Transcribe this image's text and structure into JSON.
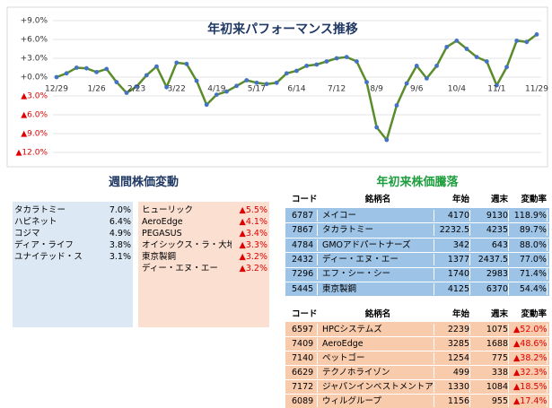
{
  "chart_data": {
    "type": "line",
    "title": "年初来パフォーマンス推移",
    "categories": [
      "12/29",
      null,
      null,
      null,
      "1/26",
      null,
      null,
      null,
      "2/23",
      null,
      null,
      null,
      "3/22",
      null,
      null,
      null,
      "4/19",
      null,
      null,
      null,
      "5/17",
      null,
      null,
      null,
      "6/14",
      null,
      null,
      null,
      "7/12",
      null,
      null,
      null,
      "8/9",
      null,
      null,
      null,
      "9/6",
      null,
      null,
      null,
      "10/4",
      null,
      null,
      null,
      "11/1",
      null,
      null,
      null,
      "11/29"
    ],
    "series": [
      {
        "color": "#5b8c2a",
        "marker_color": "#4472c4",
        "values": [
          0.0,
          0.6,
          1.5,
          1.4,
          0.8,
          1.3,
          -0.8,
          -2.5,
          -1.5,
          0.3,
          1.7,
          -1.6,
          2.3,
          2.1,
          -0.6,
          -4.4,
          -2.8,
          -2.3,
          -1.4,
          -0.5,
          -0.9,
          -1.1,
          -0.9,
          0.6,
          1.0,
          1.8,
          2.0,
          2.5,
          3.0,
          3.2,
          2.5,
          -0.8,
          -8.0,
          -10.0,
          -4.5,
          -1.0,
          1.8,
          -0.2,
          1.8,
          4.8,
          5.8,
          4.5,
          3.2,
          2.5,
          -1.3,
          1.6,
          5.8,
          5.6,
          6.8
        ]
      }
    ],
    "ylim": [
      -12,
      9
    ],
    "yticks": [
      {
        "value": 9,
        "label": "+9.0%"
      },
      {
        "value": 6,
        "label": "+6.0%"
      },
      {
        "value": 3,
        "label": "+3.0%"
      },
      {
        "value": 0,
        "label": "+0.0%"
      },
      {
        "value": -3,
        "label": "▲3.0%"
      },
      {
        "value": -6,
        "label": "▲6.0%"
      },
      {
        "value": -9,
        "label": "▲9.0%"
      },
      {
        "value": -12,
        "label": "▲12.0%"
      }
    ],
    "negative_tick_color": "#e00000",
    "grid": true
  },
  "weekly": {
    "title": "週間株価変動",
    "gainers": [
      [
        "タカラトミー",
        "7.0%"
      ],
      [
        "ハピネット",
        "6.4%"
      ],
      [
        "コジマ",
        "4.9%"
      ],
      [
        "ディア・ライフ",
        "3.8%"
      ],
      [
        "ユナイテッド・スーパー",
        "3.1%"
      ]
    ],
    "losers": [
      [
        "ヒューリック",
        "▲5.5%"
      ],
      [
        "AeroEdge",
        "▲4.1%"
      ],
      [
        "PEGASUS",
        "▲3.4%"
      ],
      [
        "オイシックス・ラ・大地",
        "▲3.3%"
      ],
      [
        "東京製鋼",
        "▲3.2%"
      ],
      [
        "ディー・エヌ・エー",
        "▲3.2%"
      ]
    ]
  },
  "ytd": {
    "title": "年初来株価騰落",
    "header": [
      "コード",
      "銘柄名",
      "年始",
      "週末",
      "変動率"
    ],
    "top": [
      [
        "6787",
        "メイコー",
        "4170",
        "9130",
        "118.9%"
      ],
      [
        "7867",
        "タカラトミー",
        "2232.5",
        "4235",
        "89.7%"
      ],
      [
        "4784",
        "GMOアドパートナーズ",
        "342",
        "643",
        "88.0%"
      ],
      [
        "2432",
        "ディー・エヌ・エー",
        "1377",
        "2437.5",
        "77.0%"
      ],
      [
        "7296",
        "エフ・シー・シー",
        "1740",
        "2983",
        "71.4%"
      ],
      [
        "5445",
        "東京製鋼",
        "4125",
        "6370",
        "54.4%"
      ]
    ],
    "bottom": [
      [
        "6597",
        "HPCシステムズ",
        "2239",
        "1075",
        "▲52.0%"
      ],
      [
        "7409",
        "AeroEdge",
        "3285",
        "1688",
        "▲48.6%"
      ],
      [
        "7140",
        "ペットゴー",
        "1254",
        "775",
        "▲38.2%"
      ],
      [
        "6629",
        "テクノホライゾン",
        "499",
        "338",
        "▲32.3%"
      ],
      [
        "7172",
        "ジャパンインベストメントアドバイザー",
        "1330",
        "1084",
        "▲18.5%"
      ],
      [
        "6089",
        "ウィルグループ",
        "1156",
        "955",
        "▲17.4%"
      ]
    ]
  }
}
